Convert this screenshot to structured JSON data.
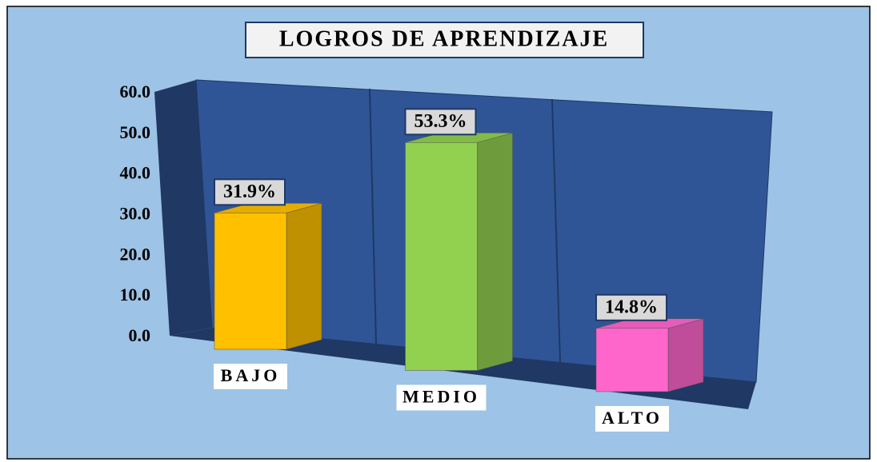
{
  "chart_data": {
    "type": "bar3d",
    "title": "LOGROS DE APRENDIZAJE",
    "categories": [
      "BAJO",
      "MEDIO",
      "ALTO"
    ],
    "values": [
      31.9,
      53.3,
      14.8
    ],
    "value_labels": [
      "31.9%",
      "53.3%",
      "14.8%"
    ],
    "colors": [
      "#ffc000",
      "#92d050",
      "#ff66cc"
    ],
    "ylim": [
      0,
      60
    ],
    "yticks": [
      {
        "value": 0,
        "label": "0.0"
      },
      {
        "value": 10,
        "label": "10.0"
      },
      {
        "value": 20,
        "label": "20.0"
      },
      {
        "value": 30,
        "label": "30.0"
      },
      {
        "value": 40,
        "label": "40.0"
      },
      {
        "value": 50,
        "label": "50.0"
      },
      {
        "value": 60,
        "label": "60.0"
      }
    ]
  }
}
